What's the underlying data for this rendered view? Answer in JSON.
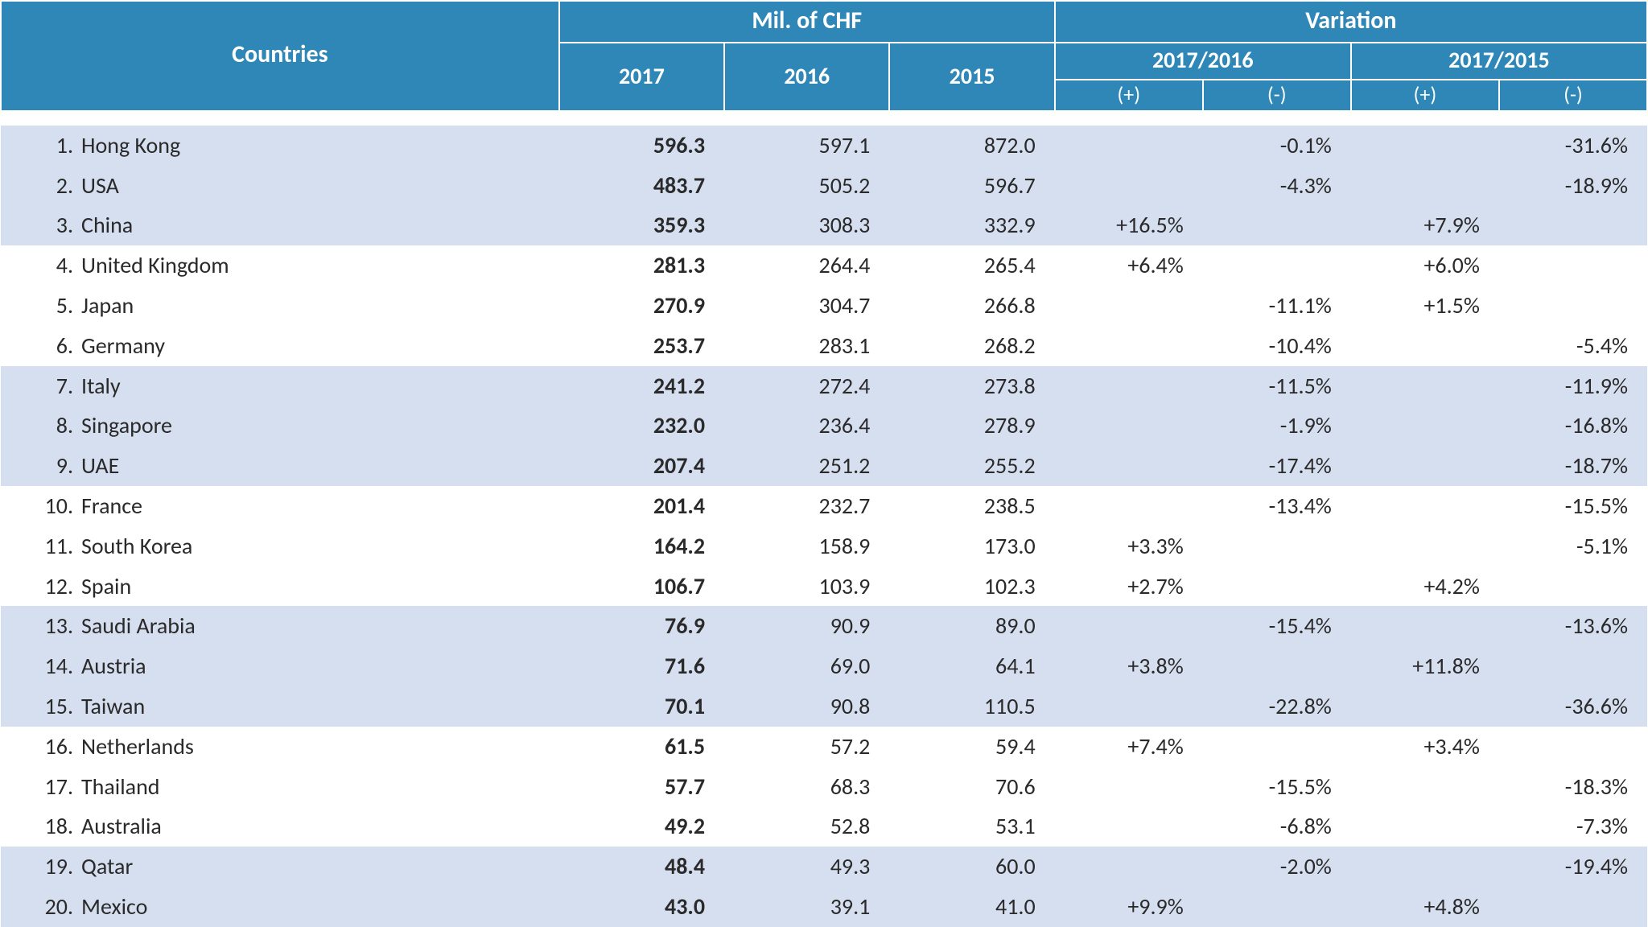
{
  "colors": {
    "header_bg": "#2e87b6",
    "header_border": "#ffffff",
    "row_stripe": "#d6dff0",
    "text": "#2a2a2a",
    "header_text": "#ffffff"
  },
  "fonts": {
    "family": "Calibri",
    "header_size_pt": 30,
    "subheader_size_pt": 28,
    "subsubheader_size_pt": 26,
    "body_size_pt": 28
  },
  "header": {
    "countries": "Countries",
    "mil_chf": "Mil. of CHF",
    "variation": "Variation",
    "y2017": "2017",
    "y2016": "2016",
    "y2015": "2015",
    "v_2017_2016": "2017/2016",
    "v_2017_2015": "2017/2015",
    "plus": "(+)",
    "minus": "(-)"
  },
  "stripe_groups": 3,
  "rows": [
    {
      "rank": "1.",
      "country": "Hong Kong",
      "y2017": "596.3",
      "y2016": "597.1",
      "y2015": "872.0",
      "v16p": "",
      "v16m": "-0.1%",
      "v15p": "",
      "v15m": "-31.6%"
    },
    {
      "rank": "2.",
      "country": "USA",
      "y2017": "483.7",
      "y2016": "505.2",
      "y2015": "596.7",
      "v16p": "",
      "v16m": "-4.3%",
      "v15p": "",
      "v15m": "-18.9%"
    },
    {
      "rank": "3.",
      "country": "China",
      "y2017": "359.3",
      "y2016": "308.3",
      "y2015": "332.9",
      "v16p": "+16.5%",
      "v16m": "",
      "v15p": "+7.9%",
      "v15m": ""
    },
    {
      "rank": "4.",
      "country": "United Kingdom",
      "y2017": "281.3",
      "y2016": "264.4",
      "y2015": "265.4",
      "v16p": "+6.4%",
      "v16m": "",
      "v15p": "+6.0%",
      "v15m": ""
    },
    {
      "rank": "5.",
      "country": "Japan",
      "y2017": "270.9",
      "y2016": "304.7",
      "y2015": "266.8",
      "v16p": "",
      "v16m": "-11.1%",
      "v15p": "+1.5%",
      "v15m": ""
    },
    {
      "rank": "6.",
      "country": "Germany",
      "y2017": "253.7",
      "y2016": "283.1",
      "y2015": "268.2",
      "v16p": "",
      "v16m": "-10.4%",
      "v15p": "",
      "v15m": "-5.4%"
    },
    {
      "rank": "7.",
      "country": "Italy",
      "y2017": "241.2",
      "y2016": "272.4",
      "y2015": "273.8",
      "v16p": "",
      "v16m": "-11.5%",
      "v15p": "",
      "v15m": "-11.9%"
    },
    {
      "rank": "8.",
      "country": "Singapore",
      "y2017": "232.0",
      "y2016": "236.4",
      "y2015": "278.9",
      "v16p": "",
      "v16m": "-1.9%",
      "v15p": "",
      "v15m": "-16.8%"
    },
    {
      "rank": "9.",
      "country": "UAE",
      "y2017": "207.4",
      "y2016": "251.2",
      "y2015": "255.2",
      "v16p": "",
      "v16m": "-17.4%",
      "v15p": "",
      "v15m": "-18.7%"
    },
    {
      "rank": "10.",
      "country": "France",
      "y2017": "201.4",
      "y2016": "232.7",
      "y2015": "238.5",
      "v16p": "",
      "v16m": "-13.4%",
      "v15p": "",
      "v15m": "-15.5%"
    },
    {
      "rank": "11.",
      "country": "South Korea",
      "y2017": "164.2",
      "y2016": "158.9",
      "y2015": "173.0",
      "v16p": "+3.3%",
      "v16m": "",
      "v15p": "",
      "v15m": "-5.1%"
    },
    {
      "rank": "12.",
      "country": "Spain",
      "y2017": "106.7",
      "y2016": "103.9",
      "y2015": "102.3",
      "v16p": "+2.7%",
      "v16m": "",
      "v15p": "+4.2%",
      "v15m": ""
    },
    {
      "rank": "13.",
      "country": "Saudi Arabia",
      "y2017": "76.9",
      "y2016": "90.9",
      "y2015": "89.0",
      "v16p": "",
      "v16m": "-15.4%",
      "v15p": "",
      "v15m": "-13.6%"
    },
    {
      "rank": "14.",
      "country": "Austria",
      "y2017": "71.6",
      "y2016": "69.0",
      "y2015": "64.1",
      "v16p": "+3.8%",
      "v16m": "",
      "v15p": "+11.8%",
      "v15m": ""
    },
    {
      "rank": "15.",
      "country": "Taiwan",
      "y2017": "70.1",
      "y2016": "90.8",
      "y2015": "110.5",
      "v16p": "",
      "v16m": "-22.8%",
      "v15p": "",
      "v15m": "-36.6%"
    },
    {
      "rank": "16.",
      "country": "Netherlands",
      "y2017": "61.5",
      "y2016": "57.2",
      "y2015": "59.4",
      "v16p": "+7.4%",
      "v16m": "",
      "v15p": "+3.4%",
      "v15m": ""
    },
    {
      "rank": "17.",
      "country": "Thailand",
      "y2017": "57.7",
      "y2016": "68.3",
      "y2015": "70.6",
      "v16p": "",
      "v16m": "-15.5%",
      "v15p": "",
      "v15m": "-18.3%"
    },
    {
      "rank": "18.",
      "country": "Australia",
      "y2017": "49.2",
      "y2016": "52.8",
      "y2015": "53.1",
      "v16p": "",
      "v16m": "-6.8%",
      "v15p": "",
      "v15m": "-7.3%"
    },
    {
      "rank": "19.",
      "country": "Qatar",
      "y2017": "48.4",
      "y2016": "49.3",
      "y2015": "60.0",
      "v16p": "",
      "v16m": "-2.0%",
      "v15p": "",
      "v15m": "-19.4%"
    },
    {
      "rank": "20.",
      "country": "Mexico",
      "y2017": "43.0",
      "y2016": "39.1",
      "y2015": "41.0",
      "v16p": "+9.9%",
      "v16m": "",
      "v15p": "+4.8%",
      "v15m": ""
    }
  ]
}
